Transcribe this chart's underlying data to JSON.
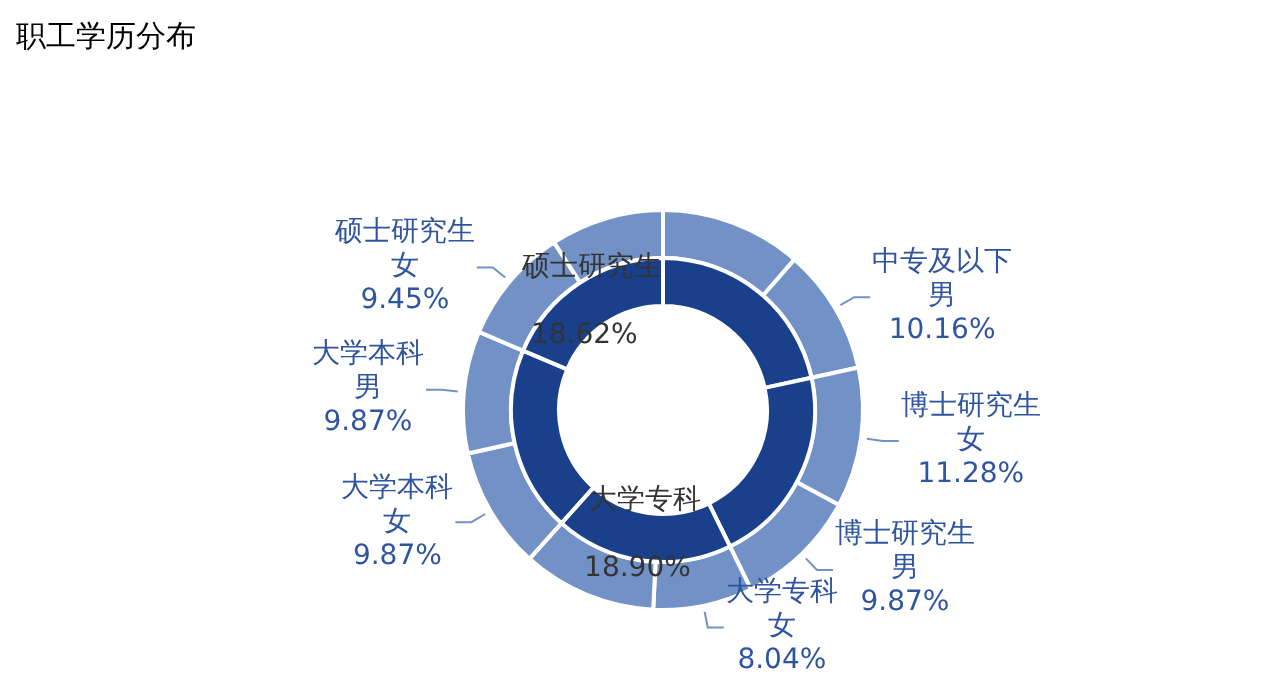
{
  "chart_data": [
    {
      "type": "donut",
      "title": "职工学历分布",
      "categories": [
        null,
        null,
        "大学专科",
        null,
        "硕士研究生"
      ],
      "values": [
        21.59,
        21.15,
        18.9,
        19.74,
        18.62
      ],
      "colors": [
        "#1a3f8b",
        "#1a3f8b",
        "#1a3f8b",
        "#1a3f8b",
        "#1a3f8b"
      ],
      "value_labels": [
        null,
        null,
        "18.90%",
        null,
        "18.62%"
      ]
    },
    {
      "type": "donut",
      "categories": [
        null,
        "中专及以下男",
        "博士研究生女",
        "博士研究生男",
        "大学专科女",
        null,
        "大学本科女",
        "大学本科男",
        "硕士研究生女",
        null
      ],
      "values": [
        11.43,
        10.16,
        11.28,
        9.87,
        8.04,
        10.86,
        9.87,
        9.87,
        9.45,
        9.17
      ],
      "colors": [
        "#7292c7",
        "#7292c7",
        "#7292c7",
        "#7292c7",
        "#7292c7",
        "#7292c7",
        "#7292c7",
        "#7292c7",
        "#7292c7",
        "#7292c7"
      ],
      "value_labels": [
        null,
        "10.16%",
        "11.28%",
        "9.87%",
        "8.04%",
        null,
        "9.87%",
        "9.87%",
        "9.45%",
        null
      ]
    }
  ]
}
